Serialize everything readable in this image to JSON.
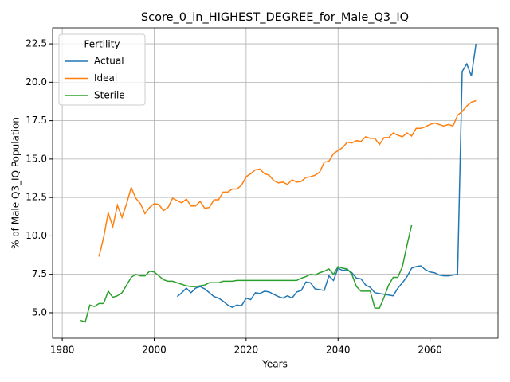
{
  "chart_data": {
    "type": "line",
    "title": "Score_0_in_HIGHEST_DEGREE_for_Male_Q3_IQ",
    "x_label": "Years",
    "y_label": "% of Male Q3_IQ Population",
    "legend_title": "Fertility",
    "legend_position": "upper-left",
    "grid": true,
    "x": [
      1984,
      1985,
      1986,
      1987,
      1988,
      1989,
      1990,
      1991,
      1992,
      1993,
      1994,
      1995,
      1996,
      1997,
      1998,
      1999,
      2000,
      2001,
      2002,
      2003,
      2004,
      2005,
      2006,
      2007,
      2008,
      2009,
      2010,
      2011,
      2012,
      2013,
      2014,
      2015,
      2016,
      2017,
      2018,
      2019,
      2020,
      2021,
      2022,
      2023,
      2024,
      2025,
      2026,
      2027,
      2028,
      2029,
      2030,
      2031,
      2032,
      2033,
      2034,
      2035,
      2036,
      2037,
      2038,
      2039,
      2040,
      2041,
      2042,
      2043,
      2044,
      2045,
      2046,
      2047,
      2048,
      2049,
      2050,
      2051,
      2052,
      2053,
      2054,
      2055,
      2056,
      2057,
      2058,
      2059,
      2060,
      2061,
      2062,
      2063,
      2064,
      2065,
      2066,
      2067,
      2068,
      2069,
      2070
    ],
    "series": [
      {
        "name": "Actual",
        "color": "#1f77b4",
        "values": [
          null,
          null,
          null,
          null,
          null,
          null,
          null,
          null,
          null,
          null,
          null,
          null,
          null,
          null,
          null,
          null,
          null,
          null,
          null,
          null,
          null,
          6.05,
          6.3,
          6.6,
          6.3,
          6.6,
          6.7,
          6.55,
          6.3,
          6.05,
          5.95,
          5.75,
          5.5,
          5.35,
          5.5,
          5.45,
          5.95,
          5.85,
          6.3,
          6.25,
          6.4,
          6.35,
          6.2,
          6.05,
          5.95,
          6.1,
          5.95,
          6.35,
          6.45,
          7.0,
          6.95,
          6.55,
          6.5,
          6.45,
          7.4,
          7.1,
          7.9,
          7.75,
          7.8,
          7.6,
          7.25,
          7.2,
          6.8,
          6.65,
          6.3,
          6.25,
          6.2,
          6.15,
          6.1,
          6.6,
          6.95,
          7.35,
          7.9,
          8.0,
          8.05,
          7.8,
          7.65,
          7.6,
          7.45,
          7.4,
          7.4,
          7.45,
          7.5,
          20.7,
          21.2,
          20.4,
          22.5
        ]
      },
      {
        "name": "Ideal",
        "color": "#ff7f0e",
        "values": [
          null,
          null,
          null,
          null,
          8.65,
          9.9,
          11.5,
          10.6,
          12.0,
          11.2,
          12.1,
          13.15,
          12.45,
          12.1,
          11.45,
          11.85,
          12.1,
          12.05,
          11.65,
          11.85,
          12.45,
          12.3,
          12.15,
          12.4,
          11.95,
          11.95,
          12.25,
          11.8,
          11.85,
          12.35,
          12.35,
          12.85,
          12.85,
          13.05,
          13.05,
          13.3,
          13.85,
          14.05,
          14.3,
          14.35,
          14.05,
          13.95,
          13.6,
          13.45,
          13.5,
          13.35,
          13.65,
          13.5,
          13.55,
          13.8,
          13.85,
          13.95,
          14.15,
          14.8,
          14.85,
          15.35,
          15.55,
          15.75,
          16.1,
          16.05,
          16.2,
          16.15,
          16.45,
          16.35,
          16.35,
          15.95,
          16.4,
          16.4,
          16.7,
          16.55,
          16.45,
          16.7,
          16.5,
          17.0,
          17.0,
          17.1,
          17.25,
          17.35,
          17.25,
          17.15,
          17.25,
          17.15,
          17.85,
          18.1,
          18.45,
          18.7,
          18.8
        ]
      },
      {
        "name": "Sterile",
        "color": "#2ca02c",
        "values": [
          4.5,
          4.4,
          5.5,
          5.4,
          5.6,
          5.6,
          6.4,
          6.0,
          6.1,
          6.3,
          6.8,
          7.3,
          7.5,
          7.4,
          7.4,
          7.7,
          7.65,
          7.4,
          7.15,
          7.05,
          7.05,
          6.95,
          6.85,
          6.75,
          6.7,
          6.7,
          6.75,
          6.8,
          6.95,
          6.95,
          6.95,
          7.05,
          7.05,
          7.05,
          7.1,
          7.1,
          7.1,
          7.1,
          7.1,
          7.1,
          7.1,
          7.1,
          7.1,
          7.1,
          7.1,
          7.1,
          7.1,
          7.1,
          7.25,
          7.35,
          7.5,
          7.45,
          7.6,
          7.7,
          7.85,
          7.5,
          8.0,
          7.9,
          7.85,
          7.5,
          6.7,
          6.4,
          6.4,
          6.4,
          5.3,
          5.3,
          6.0,
          6.8,
          7.3,
          7.3,
          8.0,
          9.4,
          10.7,
          null,
          null,
          null,
          null,
          null,
          null,
          null,
          null,
          null,
          null,
          null,
          null,
          null,
          null
        ]
      }
    ],
    "xlim": [
      1977.9,
      2074.8
    ],
    "xticks": [
      1980,
      2000,
      2020,
      2040,
      2060
    ],
    "ylim": [
      3.34,
      23.54
    ],
    "yticks": [
      {
        "value": 5,
        "label": "5.0"
      },
      7.5,
      {
        "value": 10,
        "label": "10.0"
      },
      12.5,
      {
        "value": 15,
        "label": "15.0"
      },
      17.5,
      {
        "value": 20,
        "label": "20.0"
      },
      22.5
    ]
  }
}
